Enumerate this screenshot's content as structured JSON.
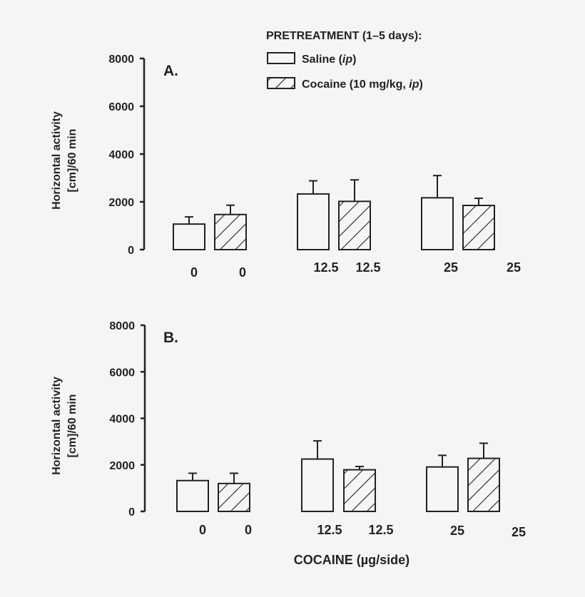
{
  "chart_data": [
    {
      "type": "bar",
      "panel_label": "A.",
      "ylabel_lines": [
        "Horizontal activity",
        "[cm]/60 min"
      ],
      "ylim": [
        0,
        8000
      ],
      "yticks": [
        0,
        2000,
        4000,
        6000,
        8000
      ],
      "categories": [
        "0",
        "0",
        "12.5",
        "12.5",
        "25",
        "25"
      ],
      "groups": [
        "Saline",
        "Cocaine",
        "Saline",
        "Cocaine",
        "Saline",
        "Cocaine"
      ],
      "values": [
        1070,
        1470,
        2330,
        2020,
        2170,
        1850
      ],
      "error_upper": [
        1370,
        1860,
        2880,
        2920,
        3100,
        2150
      ]
    },
    {
      "type": "bar",
      "panel_label": "B.",
      "ylabel_lines": [
        "Horizontal activity",
        "[cm]/60 min"
      ],
      "ylim": [
        0,
        8000
      ],
      "yticks": [
        0,
        2000,
        4000,
        6000,
        8000
      ],
      "categories": [
        "0",
        "0",
        "12.5",
        "12.5",
        "25",
        "25"
      ],
      "groups": [
        "Saline",
        "Cocaine",
        "Saline",
        "Cocaine",
        "Saline",
        "Cocaine"
      ],
      "values": [
        1325,
        1200,
        2250,
        1790,
        1910,
        2280
      ],
      "error_upper": [
        1640,
        1640,
        3030,
        1930,
        2410,
        2930
      ]
    }
  ],
  "legend": {
    "title": "PRETREATMENT (1–5 days):",
    "items": [
      {
        "pattern": "open",
        "label": "Saline (",
        "italic": "ip",
        "suffix": ")"
      },
      {
        "pattern": "hatched",
        "label": "Cocaine (10 mg/kg, ",
        "italic": "ip",
        "suffix": ")"
      }
    ],
    "placement": "top-right"
  },
  "xlabel": "COCAINE (µg/side)",
  "colors": {
    "stroke": "#222222",
    "background": "#f5f5f5"
  }
}
